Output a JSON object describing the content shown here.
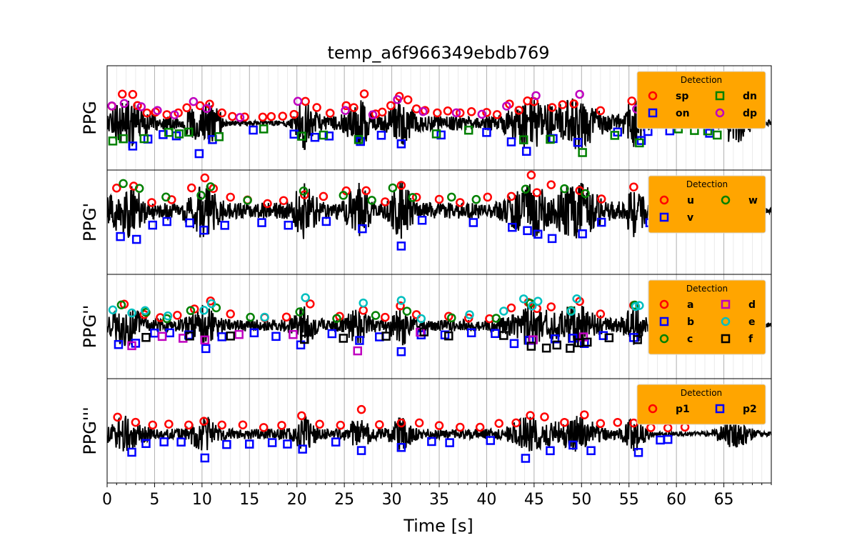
{
  "chart_data": {
    "type": "line",
    "title": "temp_a6f966349ebdb769",
    "xlabel": "Time [s]",
    "xlim": [
      0,
      70
    ],
    "xticks": [
      0,
      5,
      10,
      15,
      20,
      25,
      30,
      35,
      40,
      45,
      50,
      55,
      60,
      65
    ],
    "grid": {
      "major_every_s": 5,
      "minor_every_s": 1,
      "axis": "x"
    },
    "line_color": "#000000",
    "panels": [
      {
        "ylabel": "PPG",
        "legend": {
          "title": "Detection",
          "placement": "top-right",
          "entries": [
            {
              "label": "sp",
              "marker": "circle",
              "color": "#ff0000"
            },
            {
              "label": "dn",
              "marker": "square",
              "color": "#008000"
            },
            {
              "label": "on",
              "marker": "square",
              "color": "#0000ff"
            },
            {
              "label": "dp",
              "marker": "circle",
              "color": "#bf00bf"
            }
          ]
        },
        "markers": [
          {
            "name": "sp",
            "times": [
              0.5,
              1.6,
              2.7,
              3.2,
              4.2,
              5.1,
              6.3,
              7.5,
              8.4,
              9.8,
              10.8,
              12.1,
              13.2,
              14.5,
              16.4,
              17.3,
              18.5,
              19.7,
              20.9,
              22.1,
              23.5,
              25.2,
              26.0,
              27.1,
              28.3,
              29.0,
              29.9,
              30.8,
              31.7,
              32.6,
              33.5,
              34.8,
              35.9,
              37.2,
              38.4,
              40.0,
              41.1,
              42.4,
              43.4,
              44.3,
              45.0,
              46.9,
              48.0,
              49.2,
              52.0,
              55.3
            ]
          },
          {
            "name": "on",
            "times": [
              2.7,
              4.3,
              5.9,
              7.3,
              9.7,
              11.1,
              15.4,
              19.7,
              21.9,
              23.4,
              26.7,
              28.9,
              31.0,
              35.2,
              40.0,
              42.6,
              44.2,
              47.0,
              49.6,
              53.8,
              56.3,
              57.0,
              59.3,
              63.5
            ]
          },
          {
            "name": "dn",
            "times": [
              0.6,
              1.7,
              3.9,
              6.5,
              7.6,
              8.6,
              11.8,
              16.5,
              20.5,
              22.8,
              26.5,
              34.7,
              38.1,
              43.9,
              46.7,
              50.1,
              53.5,
              56.1,
              60.2,
              61.9,
              63.3,
              64.3
            ]
          },
          {
            "name": "dp",
            "times": [
              0.5,
              1.8,
              3.6,
              5.3,
              7.1,
              9.1,
              10.5,
              14.0,
              20.1,
              25.1,
              28.0,
              30.6,
              33.3,
              36.8,
              39.5,
              42.1,
              45.2,
              49.8,
              55.8,
              59.8,
              62.4
            ]
          }
        ]
      },
      {
        "ylabel": "PPG'",
        "legend": {
          "title": "Detection",
          "placement": "top-right",
          "entries": [
            {
              "label": "u",
              "marker": "circle",
              "color": "#ff0000"
            },
            {
              "label": "w",
              "marker": "circle",
              "color": "#008000"
            },
            {
              "label": "v",
              "marker": "square",
              "color": "#0000ff"
            }
          ]
        },
        "markers": [
          {
            "name": "u",
            "times": [
              1.0,
              2.8,
              4.7,
              6.8,
              8.9,
              10.3,
              11.2,
              13.0,
              14.8,
              16.9,
              18.6,
              20.8,
              22.8,
              25.2,
              27.3,
              29.3,
              31.0,
              32.6,
              35.0,
              37.2,
              40.1,
              42.6,
              44.7,
              45.3,
              46.8,
              49.8,
              52.1,
              55.5
            ]
          },
          {
            "name": "w",
            "times": [
              1.7,
              3.4,
              6.2,
              9.9,
              10.9,
              14.8,
              20.7,
              24.9,
              27.9,
              30.1,
              32.2,
              36.3,
              38.9,
              44.1,
              48.2,
              50.4,
              59.0,
              61.3,
              63.0
            ]
          },
          {
            "name": "v",
            "times": [
              1.4,
              3.1,
              4.8,
              6.3,
              8.7,
              10.2,
              12.4,
              16.3,
              19.1,
              23.1,
              26.9,
              31.0,
              33.2,
              38.6,
              42.7,
              44.3,
              45.4,
              46.9,
              50.1,
              52.1,
              57.2,
              63.6
            ]
          }
        ]
      },
      {
        "ylabel": "PPG''",
        "legend": {
          "title": "Detection",
          "placement": "top-right",
          "entries": [
            {
              "label": "a",
              "marker": "circle",
              "color": "#ff0000"
            },
            {
              "label": "d",
              "marker": "square",
              "color": "#bf00bf"
            },
            {
              "label": "b",
              "marker": "square",
              "color": "#0000ff"
            },
            {
              "label": "e",
              "marker": "circle",
              "color": "#00bfbf"
            },
            {
              "label": "c",
              "marker": "circle",
              "color": "#008000"
            },
            {
              "label": "f",
              "marker": "square",
              "color": "#000000"
            }
          ]
        },
        "markers": [
          {
            "name": "a",
            "times": [
              1.8,
              3.9,
              5.6,
              7.4,
              9.2,
              10.9,
              13.0,
              16.6,
              18.9,
              21.4,
              24.5,
              27.0,
              29.3,
              30.9,
              32.6,
              36.0,
              38.1,
              40.3,
              42.6,
              44.4,
              45.3,
              46.8,
              49.8,
              52.0,
              55.5
            ]
          },
          {
            "name": "b",
            "times": [
              1.2,
              3.0,
              5.0,
              6.6,
              8.6,
              10.4,
              12.1,
              15.5,
              17.8,
              20.4,
              23.7,
              26.6,
              28.7,
              31.0,
              33.1,
              35.6,
              38.4,
              40.9,
              42.9,
              44.5,
              47.2,
              49.1,
              50.3,
              52.3,
              55.5,
              57.6
            ]
          },
          {
            "name": "c",
            "times": [
              1.5,
              4.1,
              6.3,
              8.8,
              11.5,
              15.1,
              20.3,
              24.2,
              28.3,
              31.6,
              36.3,
              41.0,
              44.6,
              48.9,
              55.6,
              59.8,
              62.1,
              64.7
            ]
          },
          {
            "name": "d",
            "times": [
              2.6,
              5.8,
              8.0,
              10.3,
              13.9,
              19.6,
              26.4,
              33.0,
              44.9,
              50.2
            ]
          },
          {
            "name": "e",
            "times": [
              0.6,
              2.6,
              4.0,
              6.4,
              10.2,
              11.0,
              16.6,
              20.9,
              27.0,
              31.0,
              33.1,
              38.2,
              41.8,
              43.9,
              44.8,
              45.4,
              48.9,
              49.5,
              55.7,
              56.1
            ]
          },
          {
            "name": "f",
            "times": [
              4.1,
              8.7,
              13.0,
              20.8,
              24.9,
              29.4,
              33.4,
              36.0,
              41.8,
              44.7,
              46.3,
              47.4,
              48.8,
              49.7,
              50.6,
              52.9,
              55.9,
              59.0,
              62.3,
              64.9
            ]
          }
        ]
      },
      {
        "ylabel": "PPG'''",
        "legend": {
          "title": "Detection",
          "placement": "top-right",
          "entries": [
            {
              "label": "p1",
              "marker": "circle",
              "color": "#ff0000"
            },
            {
              "label": "p2",
              "marker": "square",
              "color": "#0000ff"
            }
          ]
        },
        "markers": [
          {
            "name": "p1",
            "times": [
              1.1,
              3.0,
              4.8,
              6.5,
              8.6,
              10.2,
              12.1,
              14.3,
              16.5,
              18.4,
              20.5,
              22.4,
              24.6,
              26.8,
              28.7,
              31.0,
              32.9,
              35.0,
              37.2,
              39.3,
              41.3,
              43.1,
              44.6,
              46.1,
              48.2,
              50.3,
              52.0,
              53.8,
              55.5,
              57.3,
              59.1,
              60.9
            ]
          },
          {
            "name": "p2",
            "times": [
              2.6,
              4.1,
              6.0,
              7.8,
              10.3,
              12.6,
              15.0,
              17.4,
              19.0,
              20.6,
              24.1,
              26.8,
              31.0,
              34.2,
              36.1,
              40.4,
              44.1,
              46.7,
              49.1,
              51.0,
              56.0,
              58.3,
              59.1
            ]
          }
        ]
      }
    ]
  }
}
